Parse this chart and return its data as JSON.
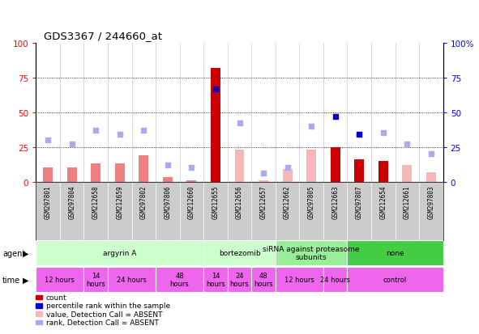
{
  "title": "GDS3367 / 244660_at",
  "samples": [
    "GSM297801",
    "GSM297804",
    "GSM212658",
    "GSM212659",
    "GSM297802",
    "GSM297806",
    "GSM212660",
    "GSM212655",
    "GSM212656",
    "GSM212657",
    "GSM212662",
    "GSM297805",
    "GSM212663",
    "GSM297807",
    "GSM212654",
    "GSM212661",
    "GSM297803"
  ],
  "bar_values": [
    10,
    10,
    13,
    13,
    19,
    3,
    1,
    82,
    23,
    1,
    9,
    23,
    25,
    16,
    15,
    12,
    7
  ],
  "bar_colors": [
    "#f08080",
    "#f08080",
    "#f08080",
    "#f08080",
    "#f08080",
    "#f08080",
    "#f08080",
    "#cc0000",
    "#f4b8b8",
    "#f4b8b8",
    "#f4b8b8",
    "#f4b8b8",
    "#cc0000",
    "#cc0000",
    "#cc0000",
    "#f4b8b8",
    "#f4b8b8"
  ],
  "rank_values": [
    30,
    27,
    37,
    34,
    37,
    12,
    10,
    67,
    42,
    6,
    10,
    40,
    47,
    34,
    35,
    27,
    20
  ],
  "rank_colors": [
    "#aaaaee",
    "#aaaaee",
    "#aaaaee",
    "#aaaaee",
    "#aaaaee",
    "#aaaaee",
    "#aaaaee",
    "#0000cc",
    "#aaaaee",
    "#aaaaee",
    "#aaaaee",
    "#aaaaee",
    "#0000cc",
    "#0000cc",
    "#aaaaee",
    "#aaaaee",
    "#aaaaee"
  ],
  "agent_groups": [
    {
      "label": "argyrin A",
      "start": 0,
      "end": 7,
      "color": "#ccffcc"
    },
    {
      "label": "bortezomib",
      "start": 7,
      "end": 10,
      "color": "#ccffcc"
    },
    {
      "label": "siRNA against proteasome\nsubunits",
      "start": 10,
      "end": 13,
      "color": "#99ee99"
    },
    {
      "label": "none",
      "start": 13,
      "end": 17,
      "color": "#44cc44"
    }
  ],
  "time_groups": [
    {
      "label": "12 hours",
      "start": 0,
      "end": 2,
      "color": "#ee66ee"
    },
    {
      "label": "14\nhours",
      "start": 2,
      "end": 3,
      "color": "#ee66ee"
    },
    {
      "label": "24 hours",
      "start": 3,
      "end": 5,
      "color": "#ee66ee"
    },
    {
      "label": "48\nhours",
      "start": 5,
      "end": 7,
      "color": "#ee66ee"
    },
    {
      "label": "14\nhours",
      "start": 7,
      "end": 8,
      "color": "#ee66ee"
    },
    {
      "label": "24\nhours",
      "start": 8,
      "end": 9,
      "color": "#ee66ee"
    },
    {
      "label": "48\nhours",
      "start": 9,
      "end": 10,
      "color": "#ee66ee"
    },
    {
      "label": "12 hours",
      "start": 10,
      "end": 12,
      "color": "#ee66ee"
    },
    {
      "label": "24 hours",
      "start": 12,
      "end": 13,
      "color": "#ee66ee"
    },
    {
      "label": "control",
      "start": 13,
      "end": 17,
      "color": "#ee66ee"
    }
  ],
  "yticks": [
    0,
    25,
    50,
    75,
    100
  ],
  "legend_items": [
    {
      "label": "count",
      "color": "#cc0000"
    },
    {
      "label": "percentile rank within the sample",
      "color": "#0000cc"
    },
    {
      "label": "value, Detection Call = ABSENT",
      "color": "#f4b8b8"
    },
    {
      "label": "rank, Detection Call = ABSENT",
      "color": "#aaaaee"
    }
  ],
  "sample_label_bg": "#cccccc",
  "plot_bg": "#ffffff",
  "bar_width": 0.4
}
